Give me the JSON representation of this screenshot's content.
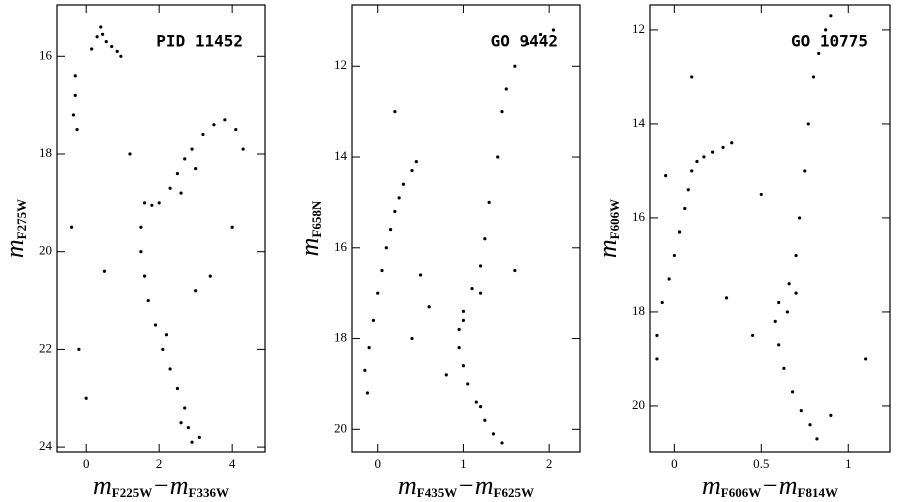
{
  "chart_data": [
    {
      "type": "scatter",
      "label": "PID 11452",
      "color": "#000000",
      "xlabel": [
        "m",
        "F225W",
        "−m",
        "F336W"
      ],
      "ylabel": [
        "m",
        "F275W"
      ],
      "xlim": [
        -0.8,
        4.9
      ],
      "ylim": [
        24.1,
        14.95
      ],
      "xticks": [
        0,
        2,
        4
      ],
      "yticks": [
        16,
        18,
        20,
        22,
        24
      ],
      "x": [
        0.3,
        0.45,
        0.55,
        0.7,
        0.85,
        0.95,
        0.4,
        0.15,
        -0.3,
        -0.35,
        -0.25,
        -0.3,
        1.6,
        1.8,
        2.0,
        2.3,
        2.5,
        2.7,
        2.9,
        3.2,
        3.5,
        3.8,
        4.1,
        4.3,
        3.0,
        2.6,
        1.5,
        1.5,
        1.6,
        1.7,
        1.9,
        2.1,
        2.3,
        2.5,
        2.7,
        2.8,
        2.9,
        2.6,
        3.1,
        2.2,
        0.5,
        -0.4,
        -0.2,
        0,
        3.4,
        4.0,
        3.0,
        1.2
      ],
      "y": [
        15.6,
        15.55,
        15.7,
        15.8,
        15.9,
        16.0,
        15.4,
        15.85,
        16.8,
        17.2,
        17.5,
        16.4,
        19.0,
        19.05,
        19.0,
        18.7,
        18.4,
        18.1,
        17.9,
        17.6,
        17.4,
        17.3,
        17.5,
        17.9,
        18.3,
        18.8,
        19.5,
        20.0,
        20.5,
        21.0,
        21.5,
        22.0,
        22.4,
        22.8,
        23.2,
        23.6,
        23.9,
        23.5,
        23.8,
        21.7,
        20.4,
        19.5,
        22.0,
        23.0,
        20.5,
        19.5,
        20.8,
        18.0
      ]
    },
    {
      "type": "scatter",
      "label": "GO 9442",
      "color": "#000000",
      "xlabel": [
        "m",
        "F435W",
        "−m",
        "F625W"
      ],
      "ylabel": [
        "m",
        "F658N"
      ],
      "xlim": [
        -0.3,
        2.36
      ],
      "ylim": [
        20.5,
        10.65
      ],
      "xticks": [
        0,
        1,
        2
      ],
      "yticks": [
        12,
        14,
        16,
        18,
        20
      ],
      "x": [
        0.3,
        0.25,
        0.2,
        0.15,
        0.1,
        0.05,
        0.0,
        -0.05,
        -0.1,
        -0.15,
        -0.12,
        0.4,
        0.45,
        1.4,
        1.45,
        1.5,
        1.6,
        1.75,
        1.9,
        2.05,
        1.3,
        1.25,
        1.2,
        1.1,
        1.0,
        0.95,
        0.95,
        1.0,
        1.05,
        1.15,
        1.25,
        1.35,
        1.45,
        1.2,
        1.0,
        1.2,
        0.6,
        0.8,
        0.5,
        0.2,
        0.4,
        1.6
      ],
      "y": [
        14.6,
        14.9,
        15.2,
        15.6,
        16.0,
        16.5,
        17.0,
        17.6,
        18.2,
        18.7,
        19.2,
        14.3,
        14.1,
        14.0,
        13.0,
        12.5,
        12.0,
        11.5,
        11.3,
        11.2,
        15.0,
        15.8,
        16.4,
        16.9,
        17.4,
        17.8,
        18.2,
        18.6,
        19.0,
        19.4,
        19.8,
        20.1,
        20.3,
        19.5,
        17.6,
        17.0,
        17.3,
        18.8,
        16.6,
        13.0,
        18.0,
        16.5
      ]
    },
    {
      "type": "scatter",
      "label": "GO 10775",
      "color": "#000000",
      "xlabel": [
        "m",
        "F606W",
        "−m",
        "F814W"
      ],
      "ylabel": [
        "m",
        "F606W"
      ],
      "xlim": [
        -0.14,
        1.24
      ],
      "ylim": [
        20.98,
        11.47
      ],
      "xticks": [
        0,
        0.5,
        1
      ],
      "yticks": [
        12,
        14,
        16,
        18,
        20
      ],
      "x": [
        0.1,
        0.13,
        0.17,
        0.22,
        0.28,
        0.33,
        0.08,
        0.06,
        0.03,
        0.0,
        -0.03,
        -0.07,
        -0.1,
        -0.1,
        -0.05,
        0.72,
        0.75,
        0.77,
        0.8,
        0.83,
        0.87,
        0.9,
        0.7,
        0.66,
        0.6,
        0.58,
        0.6,
        0.63,
        0.68,
        0.73,
        0.78,
        0.82,
        0.65,
        0.7,
        0.3,
        0.45,
        0.1,
        0.5,
        0.9,
        1.1
      ],
      "y": [
        15.0,
        14.8,
        14.7,
        14.6,
        14.5,
        14.4,
        15.4,
        15.8,
        16.3,
        16.8,
        17.3,
        17.8,
        18.5,
        19.0,
        15.1,
        16.0,
        15.0,
        14.0,
        13.0,
        12.5,
        12.0,
        11.7,
        16.8,
        17.4,
        17.8,
        18.2,
        18.7,
        19.2,
        19.7,
        20.1,
        20.4,
        20.7,
        18.0,
        17.6,
        17.7,
        18.5,
        13.0,
        15.5,
        20.2,
        19.0
      ]
    }
  ]
}
